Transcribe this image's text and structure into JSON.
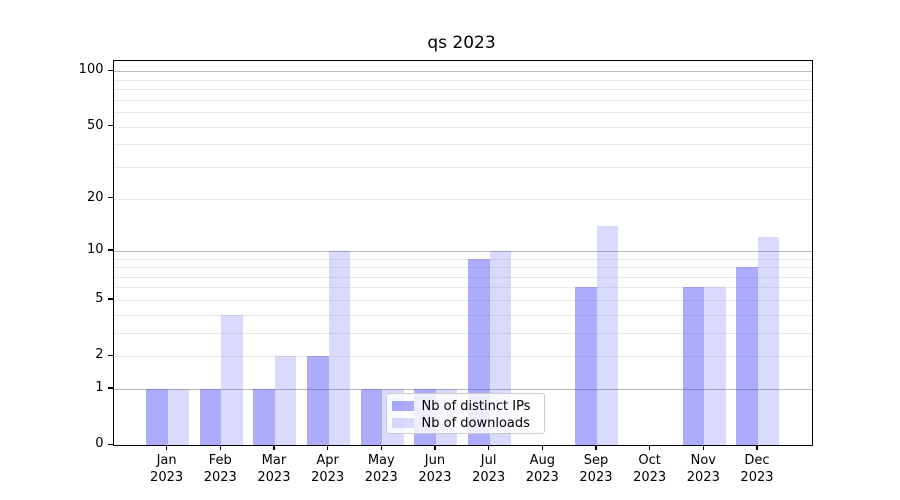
{
  "chart_data": {
    "type": "bar",
    "title": "qs 2023",
    "scale": "log1p",
    "ylabel": "",
    "xlabel": "",
    "ylim": [
      0,
      114
    ],
    "grid": "on",
    "legend_position": "lower center-left inside plot",
    "categories": [
      {
        "month": "Jan",
        "year": "2023"
      },
      {
        "month": "Feb",
        "year": "2023"
      },
      {
        "month": "Mar",
        "year": "2023"
      },
      {
        "month": "Apr",
        "year": "2023"
      },
      {
        "month": "May",
        "year": "2023"
      },
      {
        "month": "Jun",
        "year": "2023"
      },
      {
        "month": "Jul",
        "year": "2023"
      },
      {
        "month": "Aug",
        "year": "2023"
      },
      {
        "month": "Sep",
        "year": "2023"
      },
      {
        "month": "Oct",
        "year": "2023"
      },
      {
        "month": "Nov",
        "year": "2023"
      },
      {
        "month": "Dec",
        "year": "2023"
      }
    ],
    "series": [
      {
        "name": "Nb of distinct IPs",
        "color": "rgba(70,70,245,0.45)",
        "color_hex_on_white": "#acacf8",
        "values": [
          1,
          1,
          1,
          2,
          1,
          1,
          9,
          0,
          6,
          0,
          6,
          8
        ]
      },
      {
        "name": "Nb of downloads",
        "color": "rgba(70,70,245,0.20)",
        "color_hex_on_white": "#dadafb",
        "values": [
          1,
          4,
          2,
          10,
          1,
          1,
          10,
          0,
          14,
          0,
          6,
          12
        ]
      }
    ],
    "yticks": [
      0,
      1,
      2,
      5,
      10,
      20,
      50,
      100
    ],
    "grid_major_values": [
      1,
      10,
      100
    ],
    "grid_minor_values": [
      2,
      3,
      4,
      5,
      6,
      7,
      8,
      9,
      20,
      30,
      40,
      50,
      60,
      70,
      80,
      90
    ]
  }
}
